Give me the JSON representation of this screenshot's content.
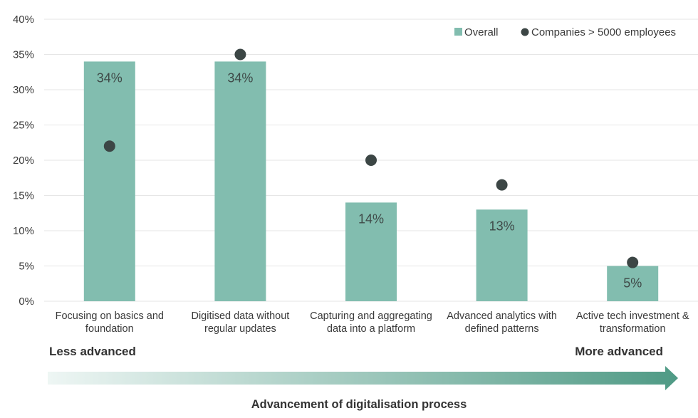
{
  "chart_data": {
    "type": "bar",
    "categories": [
      [
        "Focusing on basics and",
        "foundation"
      ],
      [
        "Digitised data without",
        "regular updates"
      ],
      [
        "Capturing and aggregating",
        "data into a platform"
      ],
      [
        "Advanced analytics with",
        "defined patterns"
      ],
      [
        "Active tech investment &",
        "transformation"
      ]
    ],
    "series": [
      {
        "name": "Overall",
        "kind": "bar",
        "values": [
          34,
          34,
          14,
          13,
          5
        ],
        "labels": [
          "34%",
          "34%",
          "14%",
          "13%",
          "5%"
        ],
        "color": "#82bdaf"
      },
      {
        "name": "Companies > 5000 employees",
        "kind": "point",
        "values": [
          22,
          35,
          20,
          16.5,
          5.5
        ],
        "color": "#3c4645"
      }
    ],
    "yticks": [
      "0%",
      "5%",
      "10%",
      "15%",
      "20%",
      "25%",
      "30%",
      "35%",
      "40%"
    ],
    "ylim": [
      0,
      40
    ],
    "xlabel": "Advancement of digitalisation process",
    "scale_left_label": "Less advanced",
    "scale_right_label": "More advanced",
    "legend_position": "top-right",
    "grid": true,
    "colors": {
      "grid": "#e6e6e6",
      "arrow_start": "#eef6f4",
      "arrow_end": "#4f9a85"
    }
  }
}
